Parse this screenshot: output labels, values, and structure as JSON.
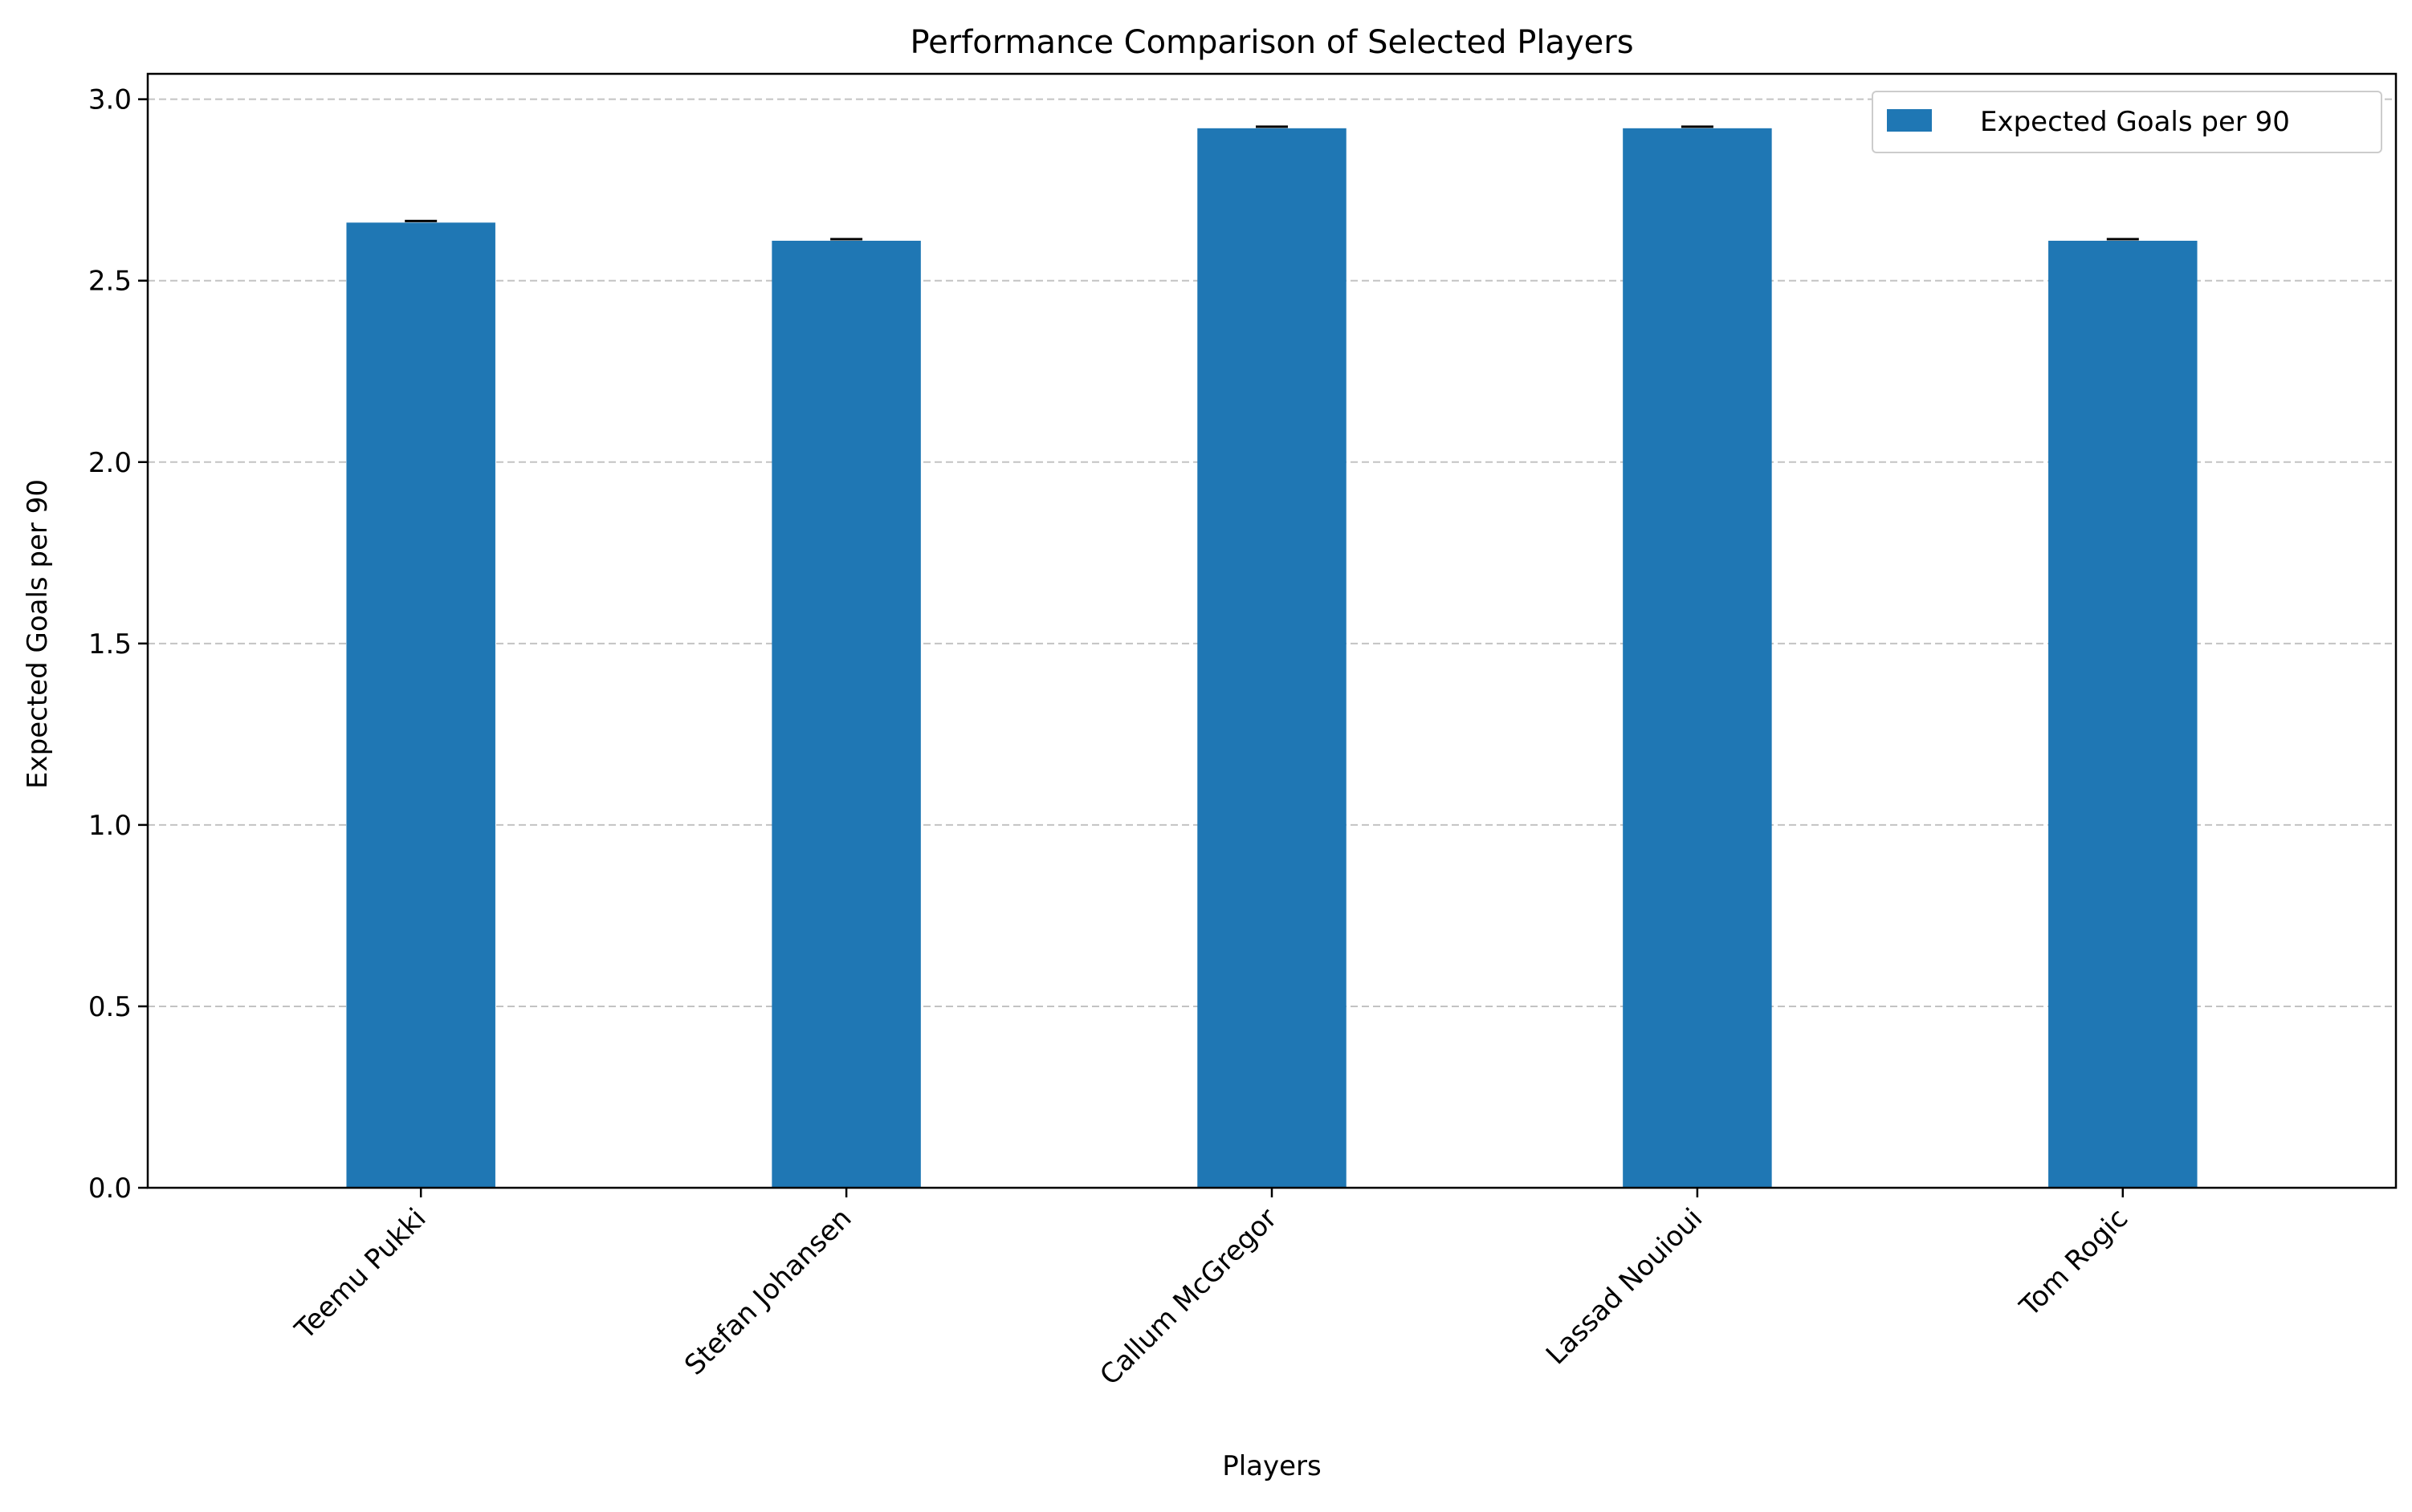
{
  "chart_data": {
    "type": "bar",
    "title": "Performance Comparison of Selected Players",
    "xlabel": "Players",
    "ylabel": "Expected Goals per 90",
    "categories": [
      "Teemu Pukki",
      "Stefan Johansen",
      "Callum McGregor",
      "Lassad Nouioui",
      "Tom Rogic"
    ],
    "series": [
      {
        "name": "Expected Goals per 90",
        "values": [
          2.66,
          2.61,
          2.92,
          2.92,
          2.61
        ],
        "color": "#1f77b4"
      }
    ],
    "ylim": [
      0,
      3.07
    ],
    "yticks": [
      "0.0",
      "0.5",
      "1.0",
      "1.5",
      "2.0",
      "2.5",
      "3.0"
    ],
    "grid": true,
    "legend": "top-right",
    "error_bars": true
  }
}
